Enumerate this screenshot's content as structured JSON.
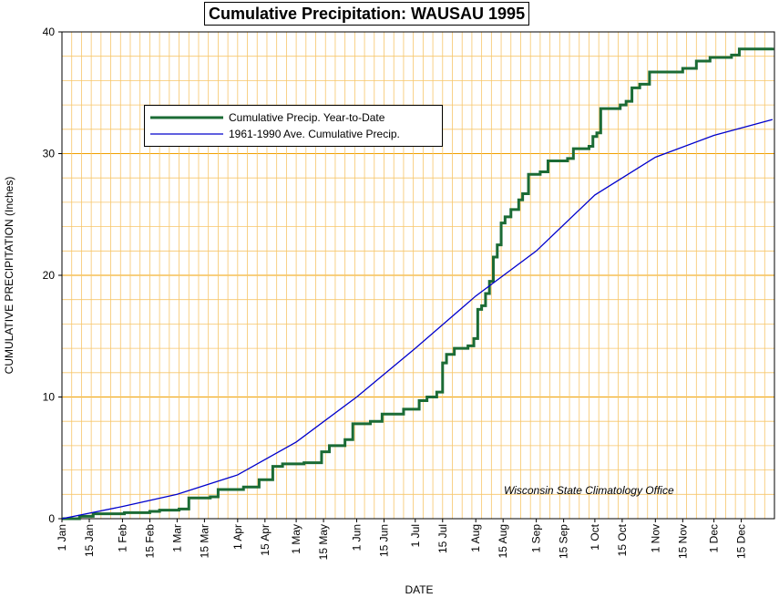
{
  "chart_data": {
    "type": "line",
    "title": "Cumulative Precipitation: WAUSAU 1995",
    "xlabel": "DATE",
    "ylabel": "CUMULATIVE PRECIPITATION (Inches)",
    "ylim": [
      0,
      40
    ],
    "xlim": [
      "1 Jan",
      "31 Dec"
    ],
    "yticks": [
      "0",
      "10",
      "20",
      "30",
      "40"
    ],
    "xticks": [
      "1 Jan",
      "15 Jan",
      "1 Feb",
      "15 Feb",
      "1 Mar",
      "15 Mar",
      "1 Apr",
      "15 Apr",
      "1 May",
      "15 May",
      "1 Jun",
      "15 Jun",
      "1 Jul",
      "15 Jul",
      "1 Aug",
      "15 Aug",
      "1 Sep",
      "15 Sep",
      "1 Oct",
      "15 Oct",
      "1 Nov",
      "15 Nov",
      "1 Dec",
      "15 Dec"
    ],
    "grid": true,
    "legend_position": "top-left",
    "annotation": "Wisconsin State Climatology Office",
    "series": [
      {
        "name": "Cumulative Precip. Year-to-Date",
        "color": "#1b6b35",
        "style": "step",
        "points": [
          [
            "1 Jan",
            0
          ],
          [
            "10 Jan",
            0.2
          ],
          [
            "17 Jan",
            0.4
          ],
          [
            "2 Feb",
            0.5
          ],
          [
            "15 Feb",
            0.6
          ],
          [
            "20 Feb",
            0.7
          ],
          [
            "2 Mar",
            0.8
          ],
          [
            "7 Mar",
            1.7
          ],
          [
            "18 Mar",
            1.8
          ],
          [
            "22 Mar",
            2.4
          ],
          [
            "4 Apr",
            2.6
          ],
          [
            "12 Apr",
            3.2
          ],
          [
            "19 Apr",
            4.3
          ],
          [
            "24 Apr",
            4.5
          ],
          [
            "5 May",
            4.6
          ],
          [
            "14 May",
            5.5
          ],
          [
            "18 May",
            6.0
          ],
          [
            "26 May",
            6.5
          ],
          [
            "30 May",
            7.8
          ],
          [
            "8 Jun",
            8.0
          ],
          [
            "14 Jun",
            8.6
          ],
          [
            "25 Jun",
            9.0
          ],
          [
            "3 Jul",
            9.7
          ],
          [
            "7 Jul",
            10.0
          ],
          [
            "12 Jul",
            10.4
          ],
          [
            "15 Jul",
            12.8
          ],
          [
            "17 Jul",
            13.5
          ],
          [
            "21 Jul",
            14.0
          ],
          [
            "28 Jul",
            14.2
          ],
          [
            "31 Jul",
            14.8
          ],
          [
            "2 Aug",
            17.2
          ],
          [
            "4 Aug",
            17.5
          ],
          [
            "6 Aug",
            18.5
          ],
          [
            "8 Aug",
            19.5
          ],
          [
            "10 Aug",
            21.5
          ],
          [
            "12 Aug",
            22.5
          ],
          [
            "14 Aug",
            24.3
          ],
          [
            "16 Aug",
            24.8
          ],
          [
            "19 Aug",
            25.4
          ],
          [
            "23 Aug",
            26.2
          ],
          [
            "25 Aug",
            26.7
          ],
          [
            "28 Aug",
            28.3
          ],
          [
            "3 Sep",
            28.5
          ],
          [
            "7 Sep",
            29.4
          ],
          [
            "17 Sep",
            29.6
          ],
          [
            "20 Sep",
            30.4
          ],
          [
            "28 Sep",
            30.6
          ],
          [
            "30 Sep",
            31.4
          ],
          [
            "2 Oct",
            31.7
          ],
          [
            "4 Oct",
            33.7
          ],
          [
            "14 Oct",
            34.0
          ],
          [
            "17 Oct",
            34.3
          ],
          [
            "20 Oct",
            35.4
          ],
          [
            "24 Oct",
            35.7
          ],
          [
            "29 Oct",
            36.7
          ],
          [
            "15 Nov",
            37.0
          ],
          [
            "22 Nov",
            37.6
          ],
          [
            "29 Nov",
            37.9
          ],
          [
            "10 Dec",
            38.1
          ],
          [
            "14 Dec",
            38.6
          ],
          [
            "31 Dec",
            38.7
          ]
        ]
      },
      {
        "name": "1961-1990 Ave. Cumulative Precip.",
        "color": "#0000cc",
        "style": "line",
        "points": [
          [
            "1 Jan",
            0
          ],
          [
            "1 Feb",
            1.0
          ],
          [
            "1 Mar",
            2.0
          ],
          [
            "1 Apr",
            3.6
          ],
          [
            "1 May",
            6.3
          ],
          [
            "1 Jun",
            10.0
          ],
          [
            "1 Jul",
            14.0
          ],
          [
            "1 Aug",
            18.3
          ],
          [
            "1 Sep",
            22.0
          ],
          [
            "1 Oct",
            26.6
          ],
          [
            "1 Nov",
            29.7
          ],
          [
            "1 Dec",
            31.5
          ],
          [
            "31 Dec",
            32.8
          ]
        ]
      }
    ]
  }
}
